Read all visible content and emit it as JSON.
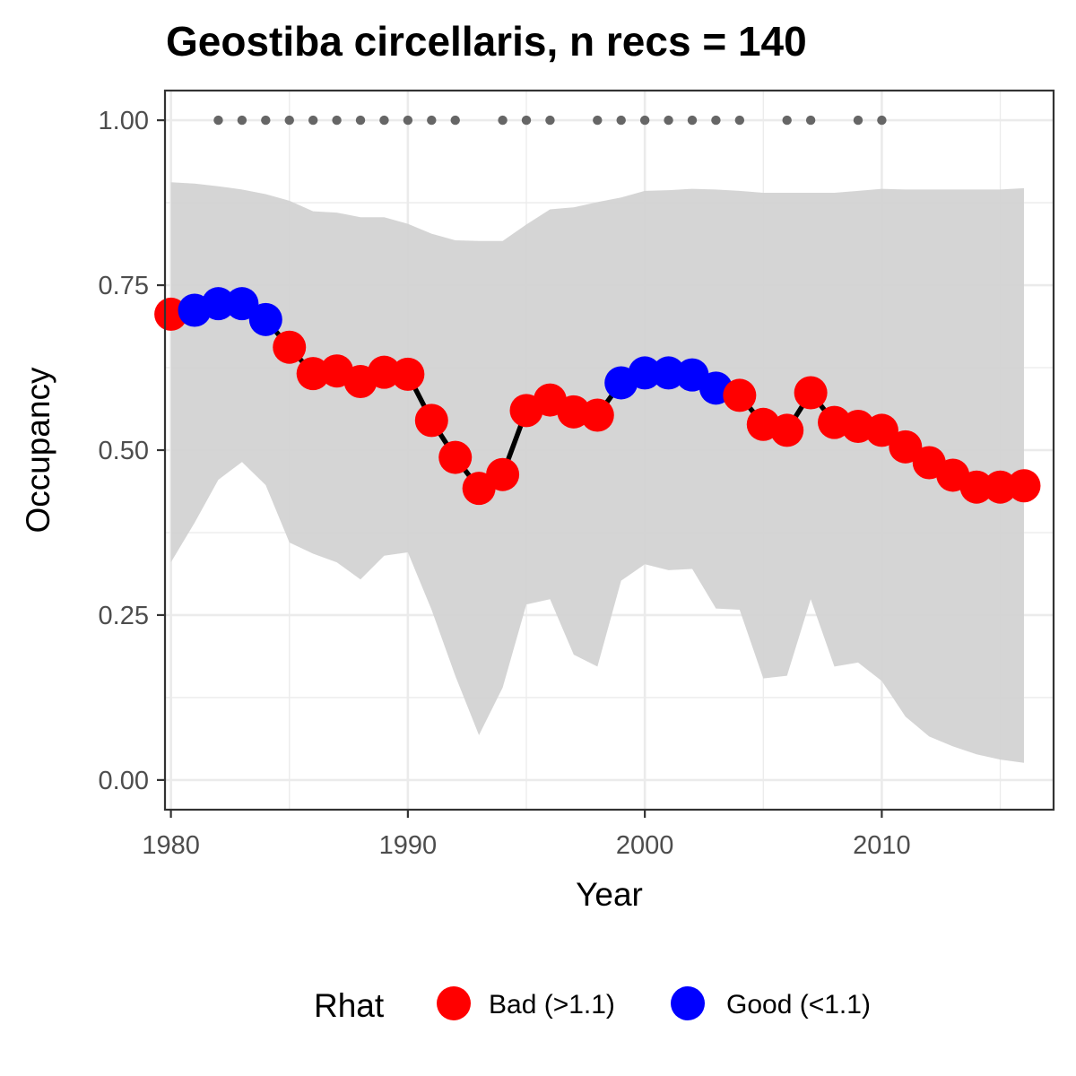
{
  "chart_data": {
    "type": "line",
    "title": "Geostiba circellaris, n recs = 140",
    "xlabel": "Year",
    "ylabel": "Occupancy",
    "xlim": [
      1979.75,
      2017.25
    ],
    "ylim": [
      -0.045,
      1.045
    ],
    "x_ticks": [
      1980,
      1990,
      2000,
      2010
    ],
    "x_tick_labels": [
      "1980",
      "1990",
      "2000",
      "2010"
    ],
    "y_ticks": [
      0,
      0.25,
      0.5,
      0.75,
      1
    ],
    "y_tick_labels": [
      "0.00",
      "0.25",
      "0.50",
      "0.75",
      "1.00"
    ],
    "grid": true,
    "legend_position": "bottom",
    "legend": {
      "title": "Rhat",
      "entries": [
        {
          "label": "Bad (>1.1)",
          "color": "#ff0000"
        },
        {
          "label": "Good (<1.1)",
          "color": "#0000ff"
        }
      ]
    },
    "series": [
      {
        "x": [
          1980,
          1981,
          1982,
          1983,
          1984,
          1985,
          1986,
          1987,
          1988,
          1989,
          1990,
          1991,
          1992,
          1993,
          1994,
          1995,
          1996,
          1997,
          1998,
          1999,
          2000,
          2001,
          2002,
          2003,
          2004,
          2005,
          2006,
          2007,
          2008,
          2009,
          2010,
          2011,
          2012,
          2013,
          2014,
          2015,
          2016
        ],
        "values": [
          0.706,
          0.712,
          0.722,
          0.722,
          0.698,
          0.656,
          0.616,
          0.62,
          0.604,
          0.618,
          0.615,
          0.545,
          0.489,
          0.442,
          0.463,
          0.56,
          0.576,
          0.558,
          0.553,
          0.602,
          0.617,
          0.617,
          0.614,
          0.594,
          0.583,
          0.539,
          0.53,
          0.587,
          0.542,
          0.536,
          0.53,
          0.505,
          0.481,
          0.462,
          0.444,
          0.444,
          0.446
        ],
        "rhat": [
          "Bad",
          "Good",
          "Good",
          "Good",
          "Good",
          "Bad",
          "Bad",
          "Bad",
          "Bad",
          "Bad",
          "Bad",
          "Bad",
          "Bad",
          "Bad",
          "Bad",
          "Bad",
          "Bad",
          "Bad",
          "Bad",
          "Good",
          "Good",
          "Good",
          "Good",
          "Good",
          "Bad",
          "Bad",
          "Bad",
          "Bad",
          "Bad",
          "Bad",
          "Bad",
          "Bad",
          "Bad",
          "Bad",
          "Bad",
          "Bad",
          "Bad"
        ],
        "upper": [
          0.906,
          0.904,
          0.9,
          0.895,
          0.888,
          0.878,
          0.862,
          0.86,
          0.853,
          0.853,
          0.843,
          0.828,
          0.818,
          0.817,
          0.817,
          0.842,
          0.865,
          0.868,
          0.876,
          0.883,
          0.893,
          0.894,
          0.896,
          0.895,
          0.893,
          0.89,
          0.89,
          0.89,
          0.89,
          0.893,
          0.896,
          0.895,
          0.895,
          0.895,
          0.895,
          0.895,
          0.897
        ],
        "lower": [
          0.33,
          0.39,
          0.455,
          0.482,
          0.447,
          0.36,
          0.343,
          0.33,
          0.304,
          0.34,
          0.345,
          0.258,
          0.158,
          0.068,
          0.14,
          0.266,
          0.274,
          0.19,
          0.172,
          0.302,
          0.327,
          0.318,
          0.32,
          0.26,
          0.258,
          0.154,
          0.158,
          0.274,
          0.172,
          0.178,
          0.15,
          0.096,
          0.066,
          0.051,
          0.039,
          0.031,
          0.026
        ]
      }
    ],
    "record_years": [
      1982,
      1983,
      1984,
      1985,
      1986,
      1987,
      1988,
      1989,
      1990,
      1991,
      1992,
      1994,
      1995,
      1996,
      1998,
      1999,
      2000,
      2001,
      2002,
      2003,
      2004,
      2006,
      2007,
      2009,
      2010
    ],
    "record_y": 1.0,
    "colors": {
      "ribbon": "#d3d3d3",
      "line": "#000000",
      "record_dot": "#666666",
      "grid_major": "#ebebeb",
      "panel_border": "#333333"
    }
  }
}
